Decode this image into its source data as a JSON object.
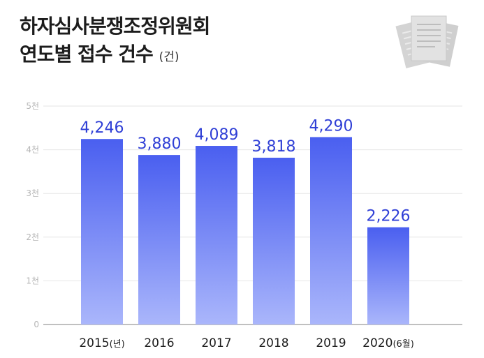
{
  "chart_data": {
    "type": "bar",
    "title_line1": "하자심사분쟁조정위원회",
    "title_line2": "연도별 접수 건수",
    "title_unit": "(건)",
    "categories": [
      "2015",
      "2016",
      "2017",
      "2018",
      "2019",
      "2020"
    ],
    "category_suffixes": [
      "(년)",
      "",
      "",
      "",
      "",
      "(6월)"
    ],
    "values": [
      4246,
      3880,
      4089,
      3818,
      4290,
      2226
    ],
    "value_labels": [
      "4,246",
      "3,880",
      "4,089",
      "3,818",
      "4,290",
      "2,226"
    ],
    "y_ticks": [
      0,
      1000,
      2000,
      3000,
      4000,
      5000
    ],
    "y_tick_labels": [
      "0",
      "1천",
      "2천",
      "3천",
      "4천",
      "5천"
    ],
    "ylim": [
      0,
      5000
    ],
    "grid": true,
    "colors": {
      "bar_top": "#4a5ff0",
      "bar_bottom": "#aab6fb",
      "value_text": "#2f3fd6",
      "grid": "#e6e6e6"
    }
  },
  "decoration": {
    "icon": "documents-icon"
  }
}
